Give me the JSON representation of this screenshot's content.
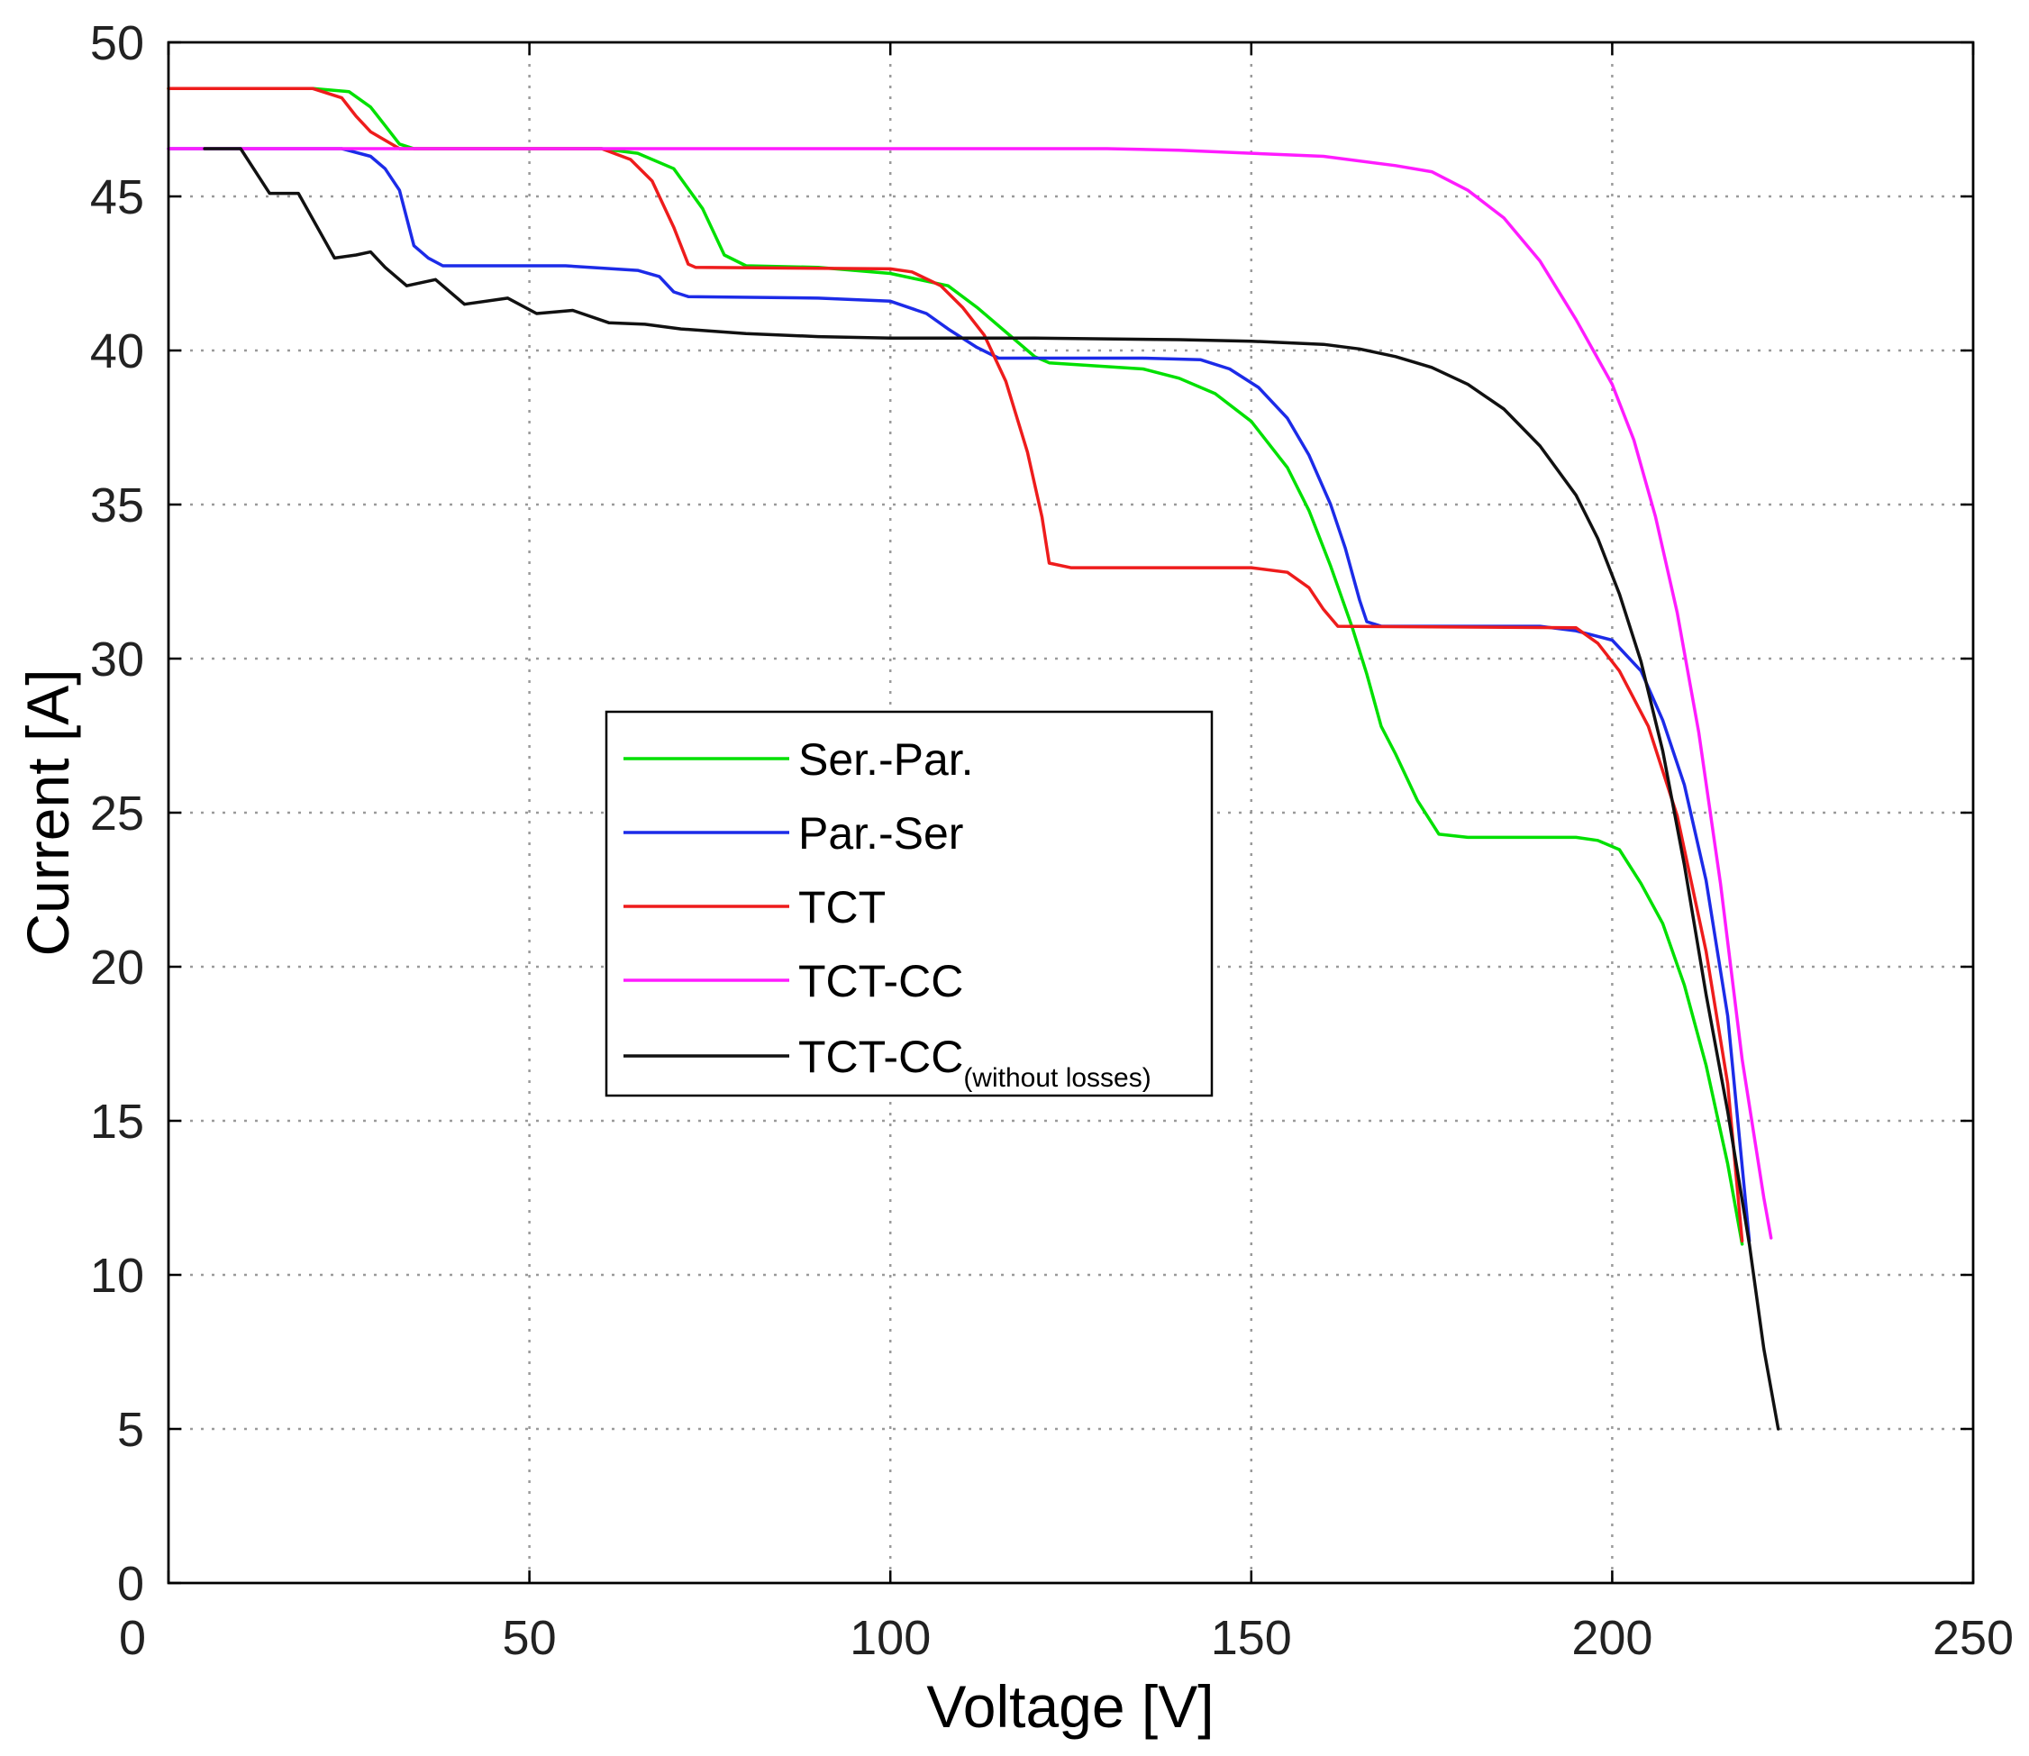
{
  "chart_data": {
    "type": "line",
    "title": "",
    "xlabel": "Voltage [V]",
    "ylabel": "Current [A]",
    "xlim": [
      0,
      250
    ],
    "ylim": [
      0,
      50
    ],
    "xticks": [
      0,
      50,
      100,
      150,
      200,
      250
    ],
    "yticks": [
      0,
      5,
      10,
      15,
      20,
      25,
      30,
      35,
      40,
      45,
      50
    ],
    "grid": true,
    "legend_position": "center-left",
    "series": [
      {
        "name": "Ser.-Par.",
        "color": "#00e000",
        "points": [
          [
            0,
            48.5
          ],
          [
            20,
            48.5
          ],
          [
            25,
            48.4
          ],
          [
            28,
            47.9
          ],
          [
            30,
            47.3
          ],
          [
            32,
            46.7
          ],
          [
            34,
            46.55
          ],
          [
            60,
            46.55
          ],
          [
            65,
            46.4
          ],
          [
            70,
            45.9
          ],
          [
            74,
            44.6
          ],
          [
            77,
            43.1
          ],
          [
            80,
            42.75
          ],
          [
            90,
            42.7
          ],
          [
            100,
            42.5
          ],
          [
            108,
            42.1
          ],
          [
            112,
            41.4
          ],
          [
            116,
            40.6
          ],
          [
            120,
            39.8
          ],
          [
            122,
            39.6
          ],
          [
            135,
            39.4
          ],
          [
            140,
            39.1
          ],
          [
            145,
            38.6
          ],
          [
            150,
            37.7
          ],
          [
            155,
            36.2
          ],
          [
            158,
            34.8
          ],
          [
            161,
            33.0
          ],
          [
            164,
            31.0
          ],
          [
            166,
            29.5
          ],
          [
            168,
            27.8
          ],
          [
            170,
            26.9
          ],
          [
            173,
            25.4
          ],
          [
            176,
            24.3
          ],
          [
            180,
            24.2
          ],
          [
            195,
            24.2
          ],
          [
            198,
            24.1
          ],
          [
            201,
            23.8
          ],
          [
            204,
            22.7
          ],
          [
            207,
            21.4
          ],
          [
            210,
            19.4
          ],
          [
            213,
            16.8
          ],
          [
            216,
            13.6
          ],
          [
            218,
            11.0
          ]
        ]
      },
      {
        "name": "Par.-Ser",
        "color": "#1c2be8",
        "points": [
          [
            0,
            46.55
          ],
          [
            24,
            46.55
          ],
          [
            28,
            46.3
          ],
          [
            30,
            45.9
          ],
          [
            32,
            45.2
          ],
          [
            34,
            43.4
          ],
          [
            36,
            43.0
          ],
          [
            38,
            42.75
          ],
          [
            55,
            42.75
          ],
          [
            65,
            42.6
          ],
          [
            68,
            42.4
          ],
          [
            70,
            41.9
          ],
          [
            72,
            41.75
          ],
          [
            90,
            41.7
          ],
          [
            100,
            41.6
          ],
          [
            105,
            41.2
          ],
          [
            108,
            40.7
          ],
          [
            112,
            40.1
          ],
          [
            115,
            39.75
          ],
          [
            120,
            39.75
          ],
          [
            135,
            39.75
          ],
          [
            143,
            39.7
          ],
          [
            147,
            39.4
          ],
          [
            151,
            38.8
          ],
          [
            155,
            37.8
          ],
          [
            158,
            36.6
          ],
          [
            161,
            35.0
          ],
          [
            163,
            33.6
          ],
          [
            165,
            31.9
          ],
          [
            166,
            31.2
          ],
          [
            168,
            31.05
          ],
          [
            190,
            31.05
          ],
          [
            195,
            30.9
          ],
          [
            200,
            30.6
          ],
          [
            204,
            29.6
          ],
          [
            207,
            28.0
          ],
          [
            210,
            25.9
          ],
          [
            213,
            22.8
          ],
          [
            216,
            18.4
          ],
          [
            219,
            11.1
          ]
        ]
      },
      {
        "name": "TCT",
        "color": "#ee1c1c",
        "points": [
          [
            0,
            48.5
          ],
          [
            20,
            48.5
          ],
          [
            24,
            48.2
          ],
          [
            26,
            47.6
          ],
          [
            28,
            47.1
          ],
          [
            32,
            46.55
          ],
          [
            60,
            46.55
          ],
          [
            64,
            46.2
          ],
          [
            67,
            45.5
          ],
          [
            70,
            44.0
          ],
          [
            72,
            42.8
          ],
          [
            73,
            42.7
          ],
          [
            100,
            42.65
          ],
          [
            103,
            42.55
          ],
          [
            107,
            42.1
          ],
          [
            110,
            41.4
          ],
          [
            113,
            40.5
          ],
          [
            116,
            39.0
          ],
          [
            119,
            36.7
          ],
          [
            121,
            34.6
          ],
          [
            122,
            33.1
          ],
          [
            125,
            32.95
          ],
          [
            150,
            32.95
          ],
          [
            155,
            32.8
          ],
          [
            158,
            32.3
          ],
          [
            160,
            31.6
          ],
          [
            162,
            31.05
          ],
          [
            195,
            31.0
          ],
          [
            198,
            30.5
          ],
          [
            201,
            29.6
          ],
          [
            205,
            27.8
          ],
          [
            209,
            24.9
          ],
          [
            213,
            20.5
          ],
          [
            216,
            16.2
          ],
          [
            218,
            11.1
          ]
        ]
      },
      {
        "name": "TCT-CC",
        "color": "#ff1cff",
        "points": [
          [
            0,
            46.55
          ],
          [
            130,
            46.55
          ],
          [
            140,
            46.5
          ],
          [
            150,
            46.4
          ],
          [
            160,
            46.3
          ],
          [
            170,
            46.0
          ],
          [
            175,
            45.8
          ],
          [
            180,
            45.2
          ],
          [
            185,
            44.3
          ],
          [
            190,
            42.9
          ],
          [
            195,
            41.0
          ],
          [
            200,
            38.9
          ],
          [
            203,
            37.1
          ],
          [
            206,
            34.6
          ],
          [
            209,
            31.5
          ],
          [
            212,
            27.6
          ],
          [
            215,
            22.7
          ],
          [
            218,
            17.0
          ],
          [
            221,
            12.5
          ],
          [
            222,
            11.2
          ]
        ]
      },
      {
        "name": "TCT-CC(without losses)",
        "color": "#111111",
        "points": [
          [
            5,
            46.55
          ],
          [
            10,
            46.55
          ],
          [
            14,
            45.1
          ],
          [
            18,
            45.1
          ],
          [
            23,
            43.0
          ],
          [
            26,
            43.1
          ],
          [
            28,
            43.2
          ],
          [
            30,
            42.7
          ],
          [
            33,
            42.1
          ],
          [
            37,
            42.3
          ],
          [
            41,
            41.5
          ],
          [
            47,
            41.7
          ],
          [
            51,
            41.2
          ],
          [
            56,
            41.3
          ],
          [
            61,
            40.9
          ],
          [
            66,
            40.85
          ],
          [
            71,
            40.7
          ],
          [
            80,
            40.55
          ],
          [
            90,
            40.45
          ],
          [
            100,
            40.4
          ],
          [
            120,
            40.4
          ],
          [
            140,
            40.35
          ],
          [
            150,
            40.3
          ],
          [
            160,
            40.2
          ],
          [
            165,
            40.05
          ],
          [
            170,
            39.8
          ],
          [
            175,
            39.45
          ],
          [
            180,
            38.9
          ],
          [
            185,
            38.1
          ],
          [
            190,
            36.9
          ],
          [
            195,
            35.3
          ],
          [
            198,
            33.9
          ],
          [
            201,
            32.1
          ],
          [
            204,
            29.9
          ],
          [
            207,
            27.0
          ],
          [
            210,
            23.3
          ],
          [
            213,
            19.1
          ],
          [
            216,
            15.3
          ],
          [
            219,
            11.0
          ],
          [
            221,
            7.6
          ],
          [
            223,
            5.0
          ]
        ]
      }
    ]
  },
  "legend": {
    "items": [
      {
        "label": "Ser.-Par.",
        "color": "#00e000"
      },
      {
        "label": "Par.-Ser",
        "color": "#1c2be8"
      },
      {
        "label": "TCT",
        "color": "#ee1c1c"
      },
      {
        "label": "TCT-CC",
        "color": "#ff1cff"
      },
      {
        "label": "TCT-CC",
        "subscript": "(without losses)",
        "color": "#111111"
      }
    ]
  }
}
